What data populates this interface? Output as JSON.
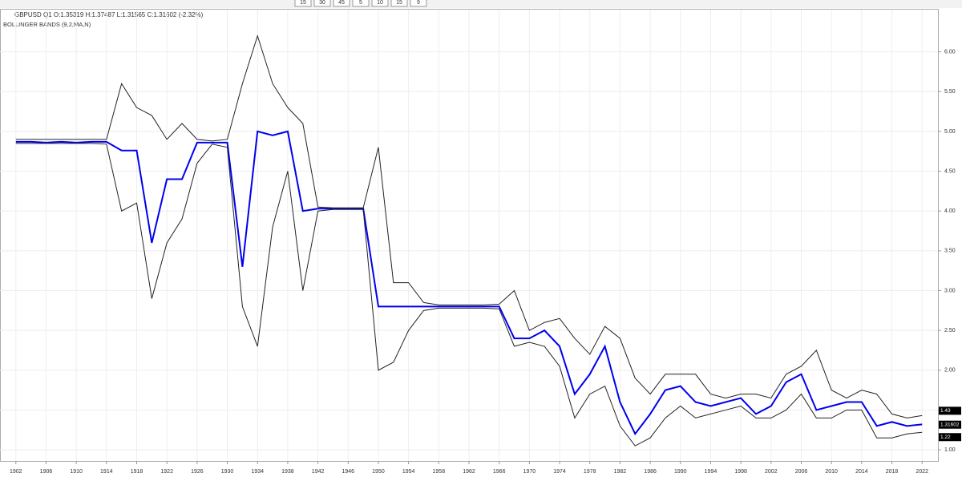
{
  "toolbar": [
    "15",
    "30",
    "45",
    "5",
    "10",
    "15",
    "9"
  ],
  "chart_data": {
    "type": "line",
    "title": "GBPUSD  Q1  O:1.35319  H:1.37487  L:1.31565  C:1.31602  (-2.32%)",
    "subtitle": "BOLLINGER BANDS (9,2,MA,N)",
    "x": [
      1902,
      1904,
      1906,
      1908,
      1910,
      1912,
      1914,
      1916,
      1918,
      1920,
      1922,
      1924,
      1926,
      1928,
      1930,
      1932,
      1934,
      1936,
      1938,
      1940,
      1942,
      1944,
      1946,
      1948,
      1950,
      1952,
      1954,
      1956,
      1958,
      1960,
      1962,
      1964,
      1966,
      1968,
      1970,
      1972,
      1974,
      1976,
      1978,
      1980,
      1982,
      1984,
      1986,
      1988,
      1990,
      1992,
      1994,
      1996,
      1998,
      2000,
      2002,
      2004,
      2006,
      2008,
      2010,
      2012,
      2014,
      2016,
      2018,
      2020,
      2022
    ],
    "series": [
      {
        "color": "#0000ee",
        "width": 2,
        "values": [
          4.87,
          4.87,
          4.86,
          4.87,
          4.86,
          4.87,
          4.87,
          4.76,
          4.76,
          3.6,
          4.4,
          4.4,
          4.86,
          4.86,
          4.86,
          3.3,
          5.0,
          4.95,
          5.0,
          4.0,
          4.03,
          4.03,
          4.03,
          4.03,
          2.8,
          2.8,
          2.8,
          2.8,
          2.8,
          2.8,
          2.8,
          2.8,
          2.8,
          2.4,
          2.4,
          2.5,
          2.3,
          1.7,
          1.95,
          2.3,
          1.6,
          1.2,
          1.45,
          1.75,
          1.8,
          1.6,
          1.55,
          1.6,
          1.65,
          1.45,
          1.55,
          1.85,
          1.95,
          1.5,
          1.55,
          1.6,
          1.6,
          1.3,
          1.35,
          1.3,
          1.32
        ]
      },
      {
        "color": "#222222",
        "width": 1,
        "values": [
          4.9,
          4.9,
          4.9,
          4.9,
          4.9,
          4.9,
          4.9,
          5.6,
          5.3,
          5.2,
          4.9,
          5.1,
          4.9,
          4.88,
          4.9,
          5.6,
          6.2,
          5.6,
          5.3,
          5.1,
          4.05,
          4.04,
          4.04,
          4.04,
          4.8,
          3.1,
          3.1,
          2.85,
          2.82,
          2.82,
          2.82,
          2.82,
          2.83,
          3.0,
          2.5,
          2.6,
          2.65,
          2.4,
          2.2,
          2.55,
          2.4,
          1.9,
          1.7,
          1.95,
          1.95,
          1.95,
          1.7,
          1.65,
          1.7,
          1.7,
          1.65,
          1.95,
          2.05,
          2.25,
          1.75,
          1.65,
          1.75,
          1.7,
          1.45,
          1.4,
          1.43
        ]
      },
      {
        "color": "#222222",
        "width": 1,
        "values": [
          4.85,
          4.85,
          4.85,
          4.85,
          4.85,
          4.85,
          4.84,
          4.0,
          4.1,
          2.9,
          3.6,
          3.9,
          4.6,
          4.84,
          4.8,
          2.8,
          2.3,
          3.8,
          4.5,
          3.0,
          4.0,
          4.02,
          4.02,
          4.02,
          2.0,
          2.1,
          2.5,
          2.75,
          2.78,
          2.78,
          2.78,
          2.78,
          2.77,
          2.3,
          2.35,
          2.3,
          2.05,
          1.4,
          1.7,
          1.8,
          1.3,
          1.05,
          1.15,
          1.4,
          1.55,
          1.4,
          1.45,
          1.5,
          1.55,
          1.4,
          1.4,
          1.5,
          1.7,
          1.4,
          1.4,
          1.5,
          1.5,
          1.15,
          1.15,
          1.2,
          1.22
        ]
      }
    ],
    "price_labels": [
      1.43,
      1.31602,
      1.22
    ],
    "xlim": [
      1899.9,
      2024.1
    ],
    "xticks": [
      1902,
      1906,
      1910,
      1914,
      1918,
      1922,
      1926,
      1930,
      1934,
      1938,
      1942,
      1946,
      1950,
      1954,
      1958,
      1962,
      1966,
      1970,
      1974,
      1978,
      1982,
      1986,
      1990,
      1994,
      1998,
      2002,
      2006,
      2010,
      2014,
      2018,
      2022
    ],
    "ylim": [
      0.86,
      6.53
    ],
    "yticks": [
      {
        "value": 1,
        "label": "1.00"
      },
      {
        "value": 1.5,
        "label": "1.50"
      },
      {
        "value": 2,
        "label": "2.00"
      },
      {
        "value": 2.5,
        "label": "2.50"
      },
      {
        "value": 3,
        "label": "3.00"
      },
      {
        "value": 3.5,
        "label": "3.50"
      },
      {
        "value": 4,
        "label": "4.00"
      },
      {
        "value": 4.5,
        "label": "4.50"
      },
      {
        "value": 5,
        "label": "5.00"
      },
      {
        "value": 5.5,
        "label": "5.50"
      },
      {
        "value": 6,
        "label": "6.00"
      }
    ],
    "grid": true
  }
}
